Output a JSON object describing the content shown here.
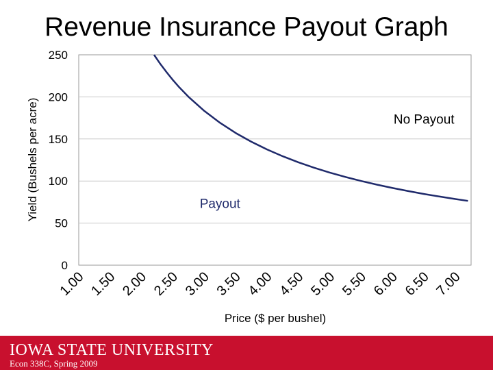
{
  "slide": {
    "title": "Revenue Insurance Payout Graph"
  },
  "footer": {
    "university_name": "IOWA STATE UNIVERSITY",
    "course": "Econ 338C, Spring 2009",
    "background_color": "#c8102e"
  },
  "chart_data": {
    "type": "line",
    "title": "",
    "xlabel": "Price ($ per bushel)",
    "ylabel": "Yield (Bushels per acre)",
    "xlim": [
      1.0,
      7.25
    ],
    "ylim": [
      0,
      250
    ],
    "x_ticks": [
      "1.00",
      "1.50",
      "2.00",
      "2.50",
      "3.00",
      "3.50",
      "4.00",
      "4.50",
      "5.00",
      "5.50",
      "6.00",
      "6.50",
      "7.00"
    ],
    "y_ticks": [
      0,
      50,
      100,
      150,
      200,
      250
    ],
    "grid": true,
    "series": [
      {
        "color": "#1f2a6b",
        "x": [
          2.2,
          2.3,
          2.4,
          2.5,
          2.6,
          2.75,
          3.0,
          3.25,
          3.5,
          3.75,
          4.0,
          4.25,
          4.5,
          4.75,
          5.0,
          5.25,
          5.5,
          5.75,
          6.0,
          6.25,
          6.5,
          6.75,
          7.0,
          7.2
        ],
        "y": [
          250.0,
          239.1,
          229.2,
          220.0,
          211.5,
          200.0,
          183.3,
          169.2,
          157.1,
          146.7,
          137.5,
          129.4,
          122.2,
          115.8,
          110.0,
          104.8,
          100.0,
          95.7,
          91.7,
          88.0,
          84.6,
          81.5,
          78.6,
          76.4
        ]
      }
    ],
    "annotations": [
      {
        "text": "No Payout",
        "x": 6.5,
        "y": 168,
        "color": "#000000"
      },
      {
        "text": "Payout",
        "x": 3.25,
        "y": 68,
        "color": "#1f2a6b"
      }
    ]
  }
}
